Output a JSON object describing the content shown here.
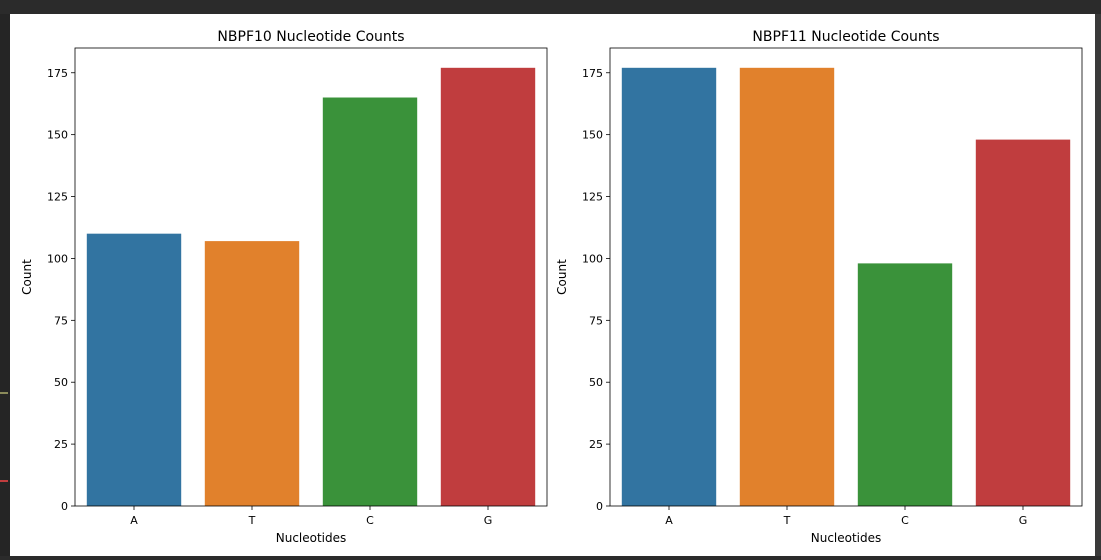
{
  "chart_data": [
    {
      "type": "bar",
      "title": "NBPF10 Nucleotide Counts",
      "xlabel": "Nucleotides",
      "ylabel": "Count",
      "categories": [
        "A",
        "T",
        "C",
        "G"
      ],
      "values": [
        110,
        107,
        165,
        177
      ],
      "colors": [
        "#3274a1",
        "#e1812c",
        "#3a923a",
        "#c03d3e"
      ],
      "ylim": [
        0,
        185
      ],
      "yticks": [
        0,
        25,
        50,
        75,
        100,
        125,
        150,
        175
      ],
      "grid": false,
      "legend": "none"
    },
    {
      "type": "bar",
      "title": "NBPF11 Nucleotide Counts",
      "xlabel": "Nucleotides",
      "ylabel": "Count",
      "categories": [
        "A",
        "T",
        "C",
        "G"
      ],
      "values": [
        177,
        177,
        98,
        148
      ],
      "colors": [
        "#3274a1",
        "#e1812c",
        "#3a923a",
        "#c03d3e"
      ],
      "ylim": [
        0,
        185
      ],
      "yticks": [
        0,
        25,
        50,
        75,
        100,
        125,
        150,
        175
      ],
      "grid": false,
      "legend": "none"
    }
  ]
}
